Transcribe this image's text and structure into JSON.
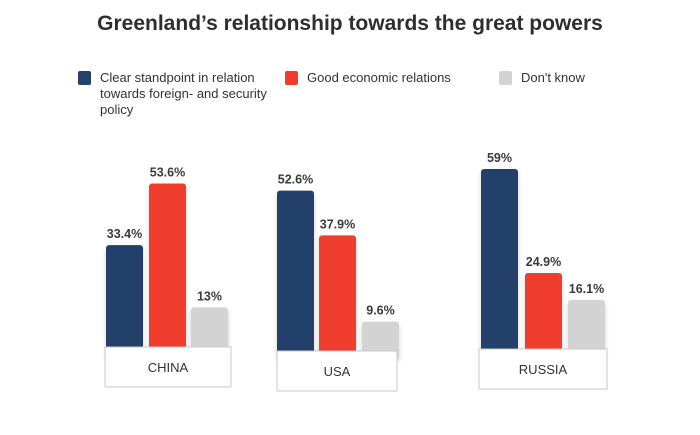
{
  "title": "Greenland’s relationship towards the great powers",
  "legend": [
    {
      "label": "Clear standpoint in relation towards foreign- and security policy",
      "color": "#24416b"
    },
    {
      "label": "Good economic relations",
      "color": "#f03c2d"
    },
    {
      "label": "Don't know",
      "color": "#d3d3d3"
    }
  ],
  "chart_data": {
    "type": "bar",
    "title": "Greenland’s relationship towards the great powers",
    "categories": [
      "CHINA",
      "USA",
      "RUSSIA"
    ],
    "series": [
      {
        "name": "Clear standpoint in relation towards foreign- and security policy",
        "values": [
          33.4,
          52.6,
          59
        ],
        "labels": [
          "33.4%",
          "52.6%",
          "59%"
        ],
        "color": "#24416b"
      },
      {
        "name": "Good economic relations",
        "values": [
          53.6,
          37.9,
          24.9
        ],
        "labels": [
          "53.6%",
          "37.9%",
          "24.9%"
        ],
        "color": "#f03c2d"
      },
      {
        "name": "Don't know",
        "values": [
          13,
          9.6,
          16.1
        ],
        "labels": [
          "13%",
          "9.6%",
          "16.1%"
        ],
        "color": "#d3d3d3"
      }
    ],
    "ylim": [
      0,
      100
    ],
    "grid": false,
    "legend_position": "top"
  }
}
